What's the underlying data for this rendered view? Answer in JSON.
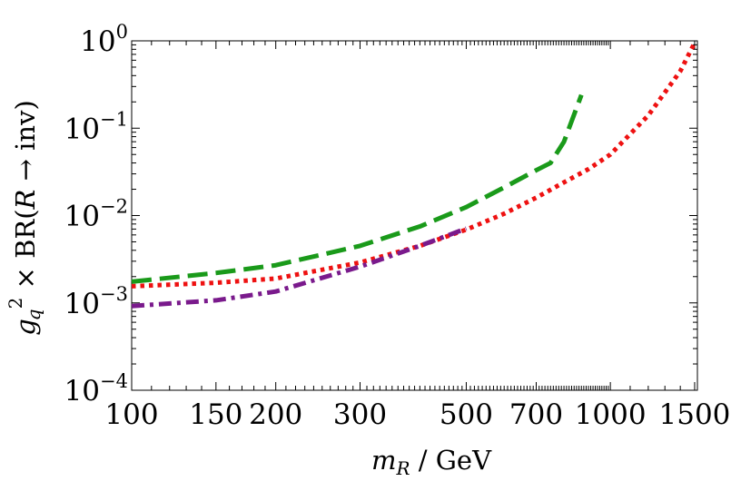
{
  "chart_data": {
    "type": "line",
    "x_scale": "log",
    "y_scale": "log",
    "xlim": [
      100,
      1520
    ],
    "ylim": [
      0.0001,
      1
    ],
    "x_ticks": [
      {
        "value": 100,
        "label": "100"
      },
      {
        "value": 150,
        "label": "150"
      },
      {
        "value": 200,
        "label": "200"
      },
      {
        "value": 300,
        "label": "300"
      },
      {
        "value": 500,
        "label": "500"
      },
      {
        "value": 700,
        "label": "700"
      },
      {
        "value": 1000,
        "label": "1000"
      },
      {
        "value": 1500,
        "label": "1500"
      }
    ],
    "y_ticks": [
      {
        "value": 1,
        "base": "10",
        "exp": "0"
      },
      {
        "value": 0.1,
        "base": "10",
        "exp": "−1"
      },
      {
        "value": 0.01,
        "base": "10",
        "exp": "−2"
      },
      {
        "value": 0.001,
        "base": "10",
        "exp": "−3"
      },
      {
        "value": 0.0001,
        "base": "10",
        "exp": "−4"
      }
    ],
    "xlabel": {
      "var": "m",
      "sub": "R",
      "unit": " / GeV"
    },
    "ylabel": {
      "var": "g",
      "sub": "q",
      "sup": "2",
      "rest": " × BR(",
      "var2": "R",
      "arrow": " → inv)"
    },
    "series": [
      {
        "name": "green-dashed",
        "color": "#1a9a1a",
        "dash": "long-dash",
        "x": [
          100,
          150,
          200,
          300,
          400,
          500,
          600,
          700,
          750,
          800,
          870
        ],
        "y": [
          0.00175,
          0.0022,
          0.0027,
          0.0045,
          0.0075,
          0.0125,
          0.021,
          0.033,
          0.04,
          0.07,
          0.24
        ]
      },
      {
        "name": "red-dotted",
        "color": "#ee1111",
        "dash": "dotted",
        "x": [
          100,
          150,
          200,
          300,
          400,
          500,
          600,
          700,
          800,
          900,
          1000,
          1200,
          1400,
          1500
        ],
        "y": [
          0.00155,
          0.0017,
          0.0019,
          0.0029,
          0.0045,
          0.0069,
          0.0105,
          0.016,
          0.024,
          0.034,
          0.05,
          0.14,
          0.45,
          0.95
        ]
      },
      {
        "name": "purple-dashdot",
        "color": "#7a1a8c",
        "dash": "dash-dot",
        "x": [
          100,
          150,
          200,
          300,
          400,
          500
        ],
        "y": [
          0.00092,
          0.00107,
          0.00135,
          0.0026,
          0.0045,
          0.0071
        ]
      }
    ]
  }
}
